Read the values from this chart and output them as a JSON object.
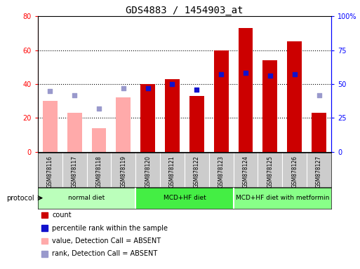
{
  "title": "GDS4883 / 1454903_at",
  "samples": [
    "GSM878116",
    "GSM878117",
    "GSM878118",
    "GSM878119",
    "GSM878120",
    "GSM878121",
    "GSM878122",
    "GSM878123",
    "GSM878124",
    "GSM878125",
    "GSM878126",
    "GSM878127"
  ],
  "count_values": [
    0,
    0,
    0,
    0,
    40,
    43,
    33,
    60,
    73,
    54,
    65,
    23
  ],
  "count_absent": [
    30,
    23,
    14,
    32,
    0,
    0,
    0,
    0,
    0,
    0,
    0,
    0
  ],
  "percentile_values": [
    0,
    0,
    0,
    0,
    47,
    50,
    46,
    57,
    58,
    56,
    57,
    0
  ],
  "percentile_absent": [
    45,
    42,
    32,
    47,
    0,
    0,
    0,
    0,
    0,
    0,
    0,
    42
  ],
  "ylim_left": [
    0,
    80
  ],
  "ylim_right": [
    0,
    100
  ],
  "yticks_left": [
    0,
    20,
    40,
    60,
    80
  ],
  "yticks_right": [
    0,
    25,
    50,
    75,
    100
  ],
  "ytick_labels_left": [
    "0",
    "20",
    "40",
    "60",
    "80"
  ],
  "ytick_labels_right": [
    "0",
    "25",
    "50",
    "75",
    "100%"
  ],
  "bar_color_count": "#cc0000",
  "bar_color_absent": "#ffaaaa",
  "dot_color_present": "#1111cc",
  "dot_color_absent": "#9999cc",
  "groups": [
    {
      "label": "normal diet",
      "start": 0,
      "end": 3,
      "color": "#bbffbb"
    },
    {
      "label": "MCD+HF diet",
      "start": 4,
      "end": 7,
      "color": "#44ee44"
    },
    {
      "label": "MCD+HF diet with metformin",
      "start": 8,
      "end": 11,
      "color": "#88ff88"
    }
  ],
  "protocol_label": "protocol",
  "legend": [
    {
      "label": "count",
      "color": "#cc0000"
    },
    {
      "label": "percentile rank within the sample",
      "color": "#1111cc"
    },
    {
      "label": "value, Detection Call = ABSENT",
      "color": "#ffaaaa"
    },
    {
      "label": "rank, Detection Call = ABSENT",
      "color": "#9999cc"
    }
  ],
  "tick_area_color": "#cccccc",
  "grid_color": "black",
  "title_fontsize": 10,
  "axis_fontsize": 7,
  "label_fontsize": 7,
  "dot_size": 18
}
